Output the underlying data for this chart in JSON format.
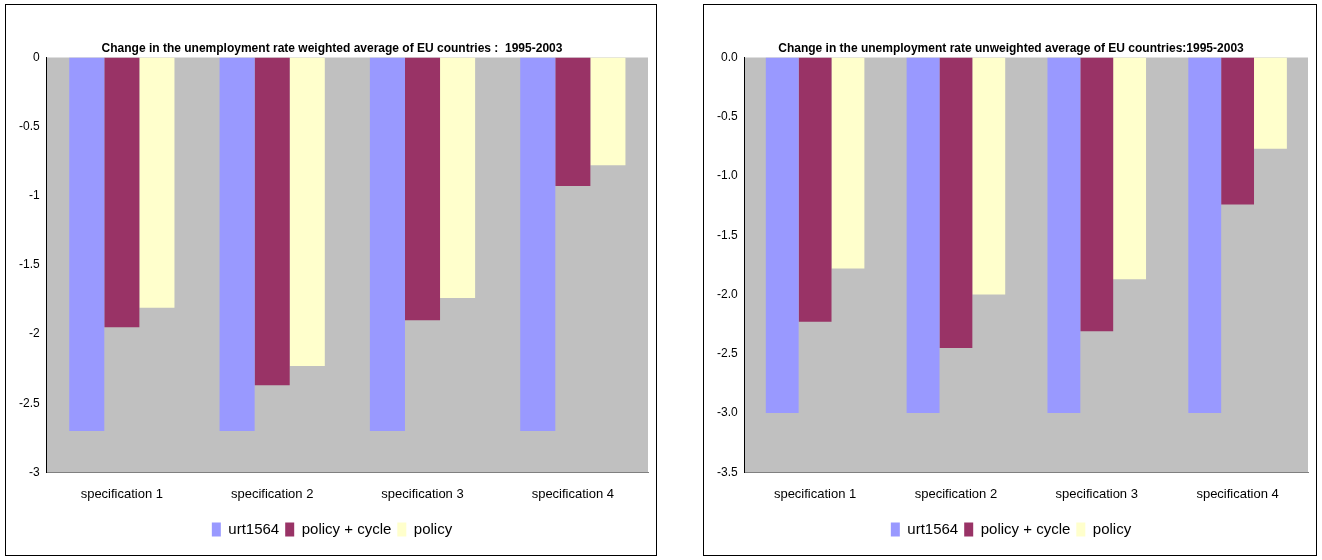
{
  "chart_data": [
    {
      "type": "bar",
      "title": "Change in the unemployment rate weighted average of EU countries :  1995-2003",
      "categories": [
        "specification 1",
        "specification 2",
        "specification 3",
        "specification 4"
      ],
      "series": [
        {
          "name": "urt1564",
          "color": "#9999ff",
          "values": [
            -2.7,
            -2.7,
            -2.7,
            -2.7
          ]
        },
        {
          "name": "policy + cycle",
          "color": "#993366",
          "values": [
            -1.95,
            -2.37,
            -1.9,
            -0.93
          ]
        },
        {
          "name": "policy",
          "color": "#ffffcc",
          "values": [
            -1.81,
            -2.23,
            -1.74,
            -0.78
          ]
        }
      ],
      "ylim": [
        -3,
        0
      ],
      "yticks": [
        0,
        -0.5,
        -1,
        -1.5,
        -2,
        -2.5,
        -3
      ],
      "grid": false,
      "legend": "bottom"
    },
    {
      "type": "bar",
      "title": "Change in the unemployment rate unweighted average of EU countries:1995-2003",
      "categories": [
        "specification 1",
        "specification 2",
        "specification 3",
        "specification 4"
      ],
      "series": [
        {
          "name": "urt1564",
          "color": "#9999ff",
          "values": [
            -3.0,
            -3.0,
            -3.0,
            -3.0
          ]
        },
        {
          "name": "policy + cycle",
          "color": "#993366",
          "values": [
            -2.23,
            -2.45,
            -2.31,
            -1.24
          ]
        },
        {
          "name": "policy",
          "color": "#ffffcc",
          "values": [
            -1.78,
            -2.0,
            -1.87,
            -0.77
          ]
        }
      ],
      "ylim": [
        -3.5,
        0
      ],
      "yticks": [
        {
          "value": 0,
          "label": "0.0"
        },
        -0.5,
        {
          "value": -1,
          "label": "-1.0"
        },
        -1.5,
        {
          "value": -2,
          "label": "-2.0"
        },
        -2.5,
        {
          "value": -3,
          "label": "-3.0"
        },
        -3.5
      ],
      "grid": false,
      "legend": "bottom"
    }
  ]
}
